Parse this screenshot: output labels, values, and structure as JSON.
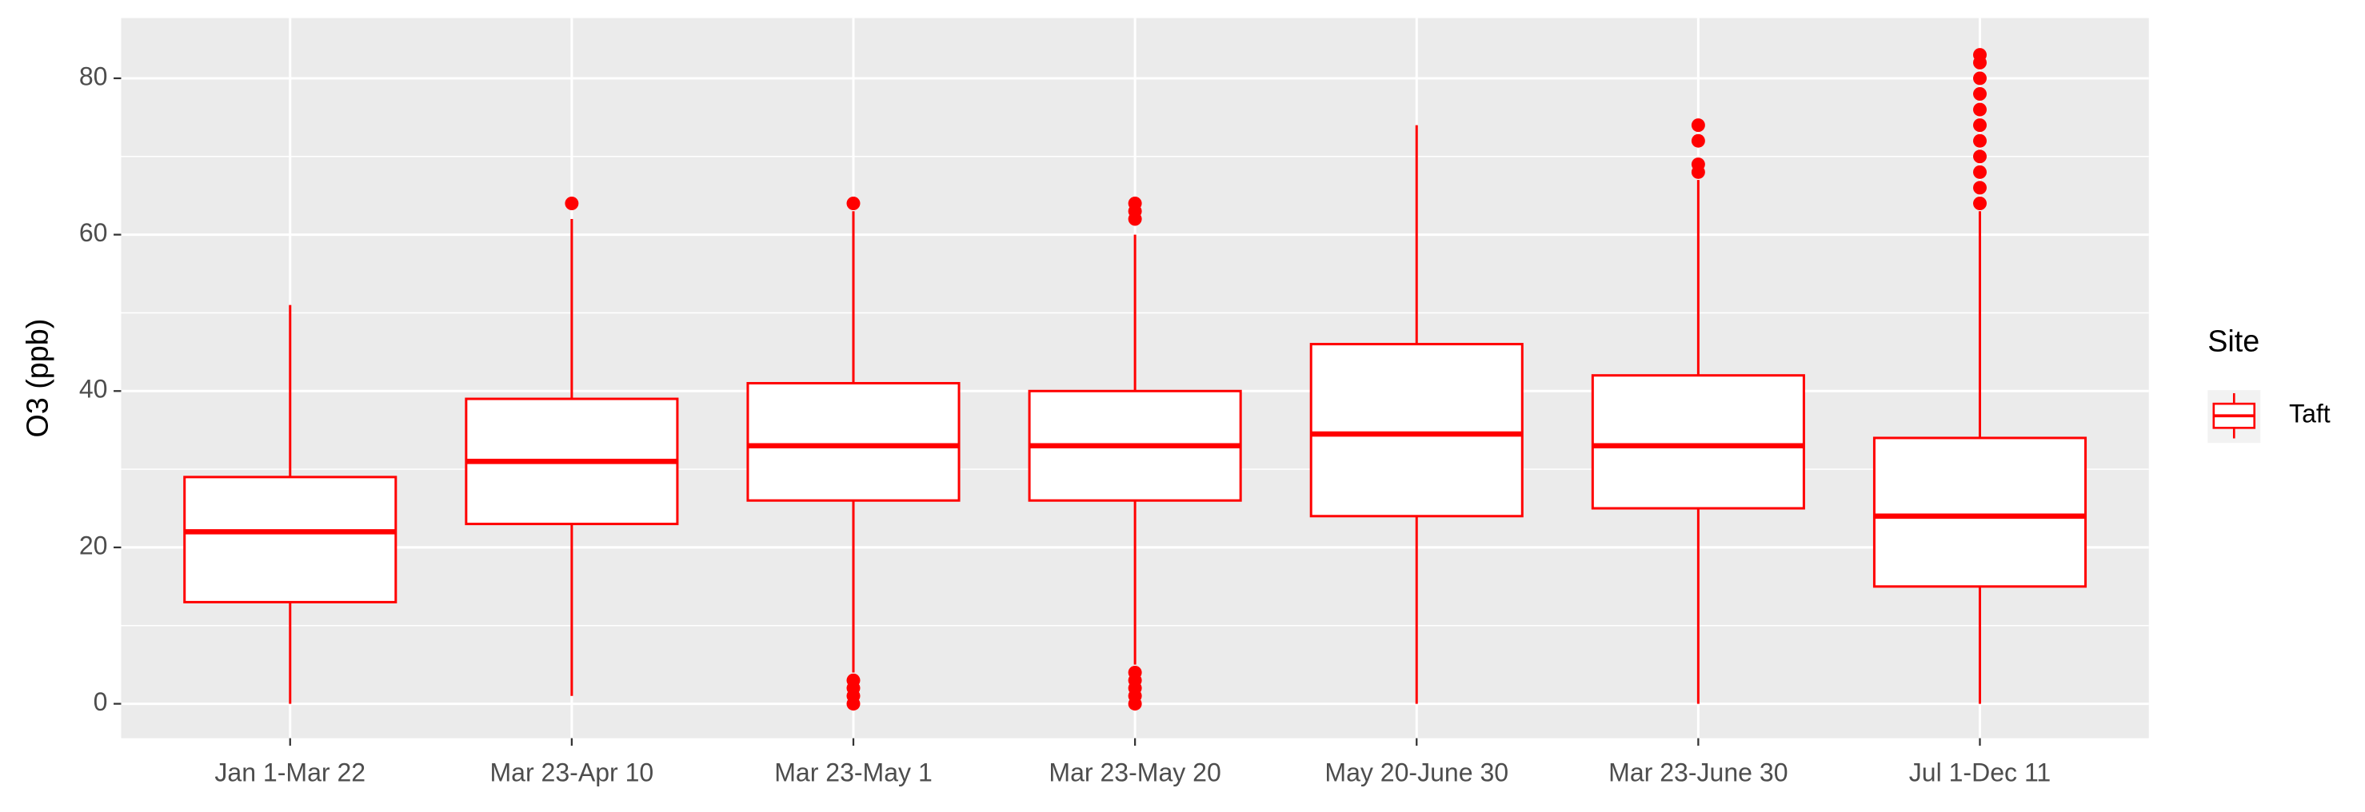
{
  "chart_data": {
    "type": "boxplot",
    "y_label": "O3 (ppb)",
    "categories": [
      "Jan 1-Mar 22",
      "Mar 23-Apr 10",
      "Mar 23-May 1",
      "Mar 23-May 20",
      "May 20-June 30",
      "Mar 23-June 30",
      "Jul 1-Dec 11"
    ],
    "series": [
      {
        "name": "Taft",
        "color": "#ff0000",
        "whisker_low": [
          0,
          1,
          4,
          5,
          0,
          0,
          0
        ],
        "q1": [
          13,
          23,
          26,
          26,
          24,
          25,
          15
        ],
        "median": [
          22,
          31,
          33,
          33,
          34.5,
          33,
          24
        ],
        "q3": [
          29,
          39,
          41,
          40,
          46,
          42,
          34
        ],
        "whisker_high": [
          51,
          62,
          63,
          60,
          74,
          67,
          63
        ],
        "outliers": [
          [],
          [
            64
          ],
          [
            0,
            1,
            2,
            3,
            64
          ],
          [
            0,
            1,
            2,
            3,
            4,
            62,
            63,
            64
          ],
          [],
          [
            68,
            69,
            72,
            74
          ],
          [
            64,
            66,
            68,
            70,
            72,
            74,
            76,
            78,
            80,
            82,
            83
          ]
        ]
      }
    ],
    "legend_title": "Site",
    "legend_position": "right",
    "ylim": [
      -4.4,
      87.7
    ],
    "yticks": [
      0,
      20,
      40,
      60,
      80
    ],
    "minor_yticks": [
      10,
      30,
      50,
      70
    ],
    "grid": true
  }
}
